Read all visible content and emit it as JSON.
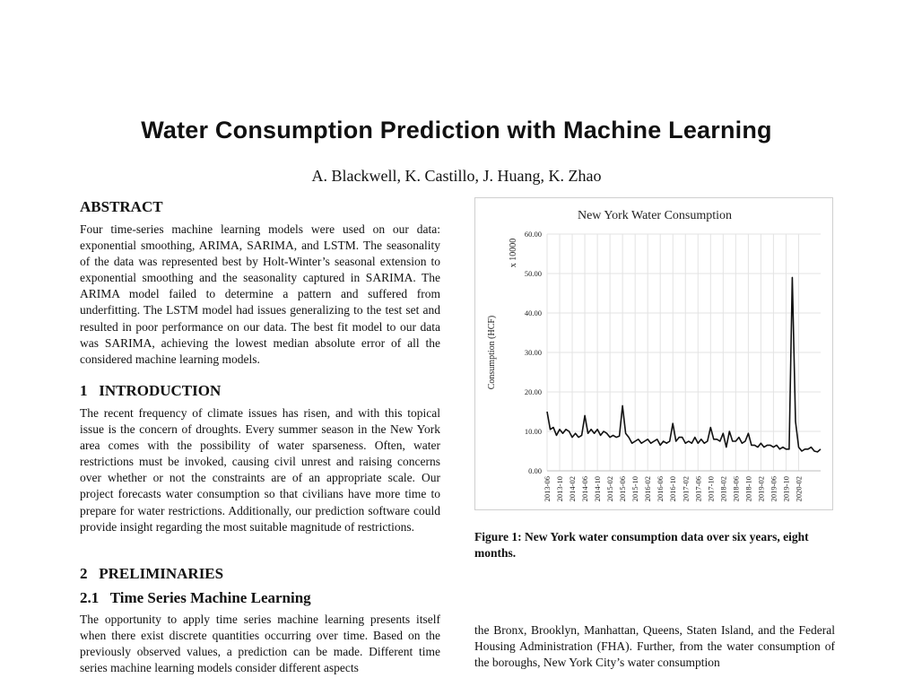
{
  "paper": {
    "title": "Water Consumption Prediction with Machine Learning",
    "authors": "A. Blackwell, K. Castillo, J. Huang, K. Zhao",
    "abstract_heading": "ABSTRACT",
    "abstract_text": "Four time-series machine learning models were used on our data: exponential smoothing, ARIMA, SARIMA, and LSTM. The seasonality of the data was represented best by Holt-Winter’s seasonal extension to exponential smoothing and the seasonality captured in SARIMA. The ARIMA model failed to determine a pattern and suffered from underfitting. The LSTM model had issues generalizing to the test set and resulted in poor performance on our data. The best fit model to our data was SARIMA, achieving the lowest median absolute error of all the considered machine learning models.",
    "intro_heading": "1   INTRODUCTION",
    "intro_text": "The recent frequency of climate issues has risen, and with this topical issue is the concern of droughts. Every summer season in the New York area comes with the possibility of water sparseness. Often, water restrictions must be invoked, causing civil unrest and raising concerns over whether or not the constraints are of an appropriate scale. Our project forecasts water consumption so that civilians have more time to prepare for water restrictions. Additionally, our prediction software could provide insight regarding the most suitable magnitude of restrictions.",
    "prelim_heading": "2   PRELIMINARIES",
    "ts_heading": "2.1   Time Series Machine Learning",
    "ts_text": "The opportunity to apply time series machine learning presents itself when there exist discrete quantities occurring over time. Based on the previously observed values, a prediction can be made. Different time series machine learning models consider different aspects",
    "right_text": "the Bronx, Brooklyn, Manhattan, Queens, Staten Island, and the Federal Housing Administration (FHA). Further, from the water consumption of the boroughs, New York City’s water consumption",
    "figure_caption": "Figure 1: New York water consumption data over six years, eight months."
  },
  "chart_data": {
    "type": "line",
    "title": "New York Water Consumption",
    "ylabel": "Consumption (HCF)",
    "yscale_label": "x 10000",
    "ylim": [
      0,
      60
    ],
    "yticks": [
      "0.00",
      "10.00",
      "20.00",
      "30.00",
      "40.00",
      "50.00",
      "60.00"
    ],
    "xtick_labels": [
      "2013-06",
      "2013-10",
      "2014-02",
      "2014-06",
      "2014-10",
      "2015-02",
      "2015-06",
      "2015-10",
      "2016-02",
      "2016-06",
      "2016-10",
      "2017-02",
      "2017-06",
      "2017-10",
      "2018-02",
      "2018-06",
      "2018-10",
      "2019-02",
      "2019-06",
      "2019-10",
      "2020-02"
    ],
    "grid": true,
    "line_color": "#111111",
    "series": [
      {
        "values": [
          15.0,
          10.5,
          11.0,
          9.0,
          10.5,
          9.5,
          10.5,
          10.0,
          8.5,
          9.5,
          8.5,
          9.0,
          14.0,
          9.5,
          10.5,
          9.5,
          10.5,
          9.0,
          10.0,
          9.5,
          8.5,
          9.0,
          8.5,
          8.8,
          16.5,
          9.5,
          8.5,
          7.0,
          7.5,
          8.0,
          7.0,
          7.5,
          8.0,
          7.0,
          7.5,
          8.0,
          6.5,
          7.5,
          7.0,
          7.5,
          12.0,
          7.5,
          8.5,
          8.5,
          7.0,
          7.5,
          7.0,
          8.5,
          7.0,
          8.0,
          7.0,
          7.5,
          11.0,
          8.0,
          8.0,
          7.5,
          9.5,
          6.0,
          10.0,
          7.5,
          7.5,
          8.5,
          7.0,
          7.5,
          9.5,
          6.5,
          6.5,
          6.0,
          7.0,
          6.0,
          6.5,
          6.5,
          6.0,
          6.5,
          5.5,
          6.0,
          5.5,
          5.5,
          49.0,
          12.5,
          6.0,
          5.0,
          5.5,
          5.5,
          6.0,
          5.0,
          4.8,
          5.5
        ]
      }
    ]
  }
}
